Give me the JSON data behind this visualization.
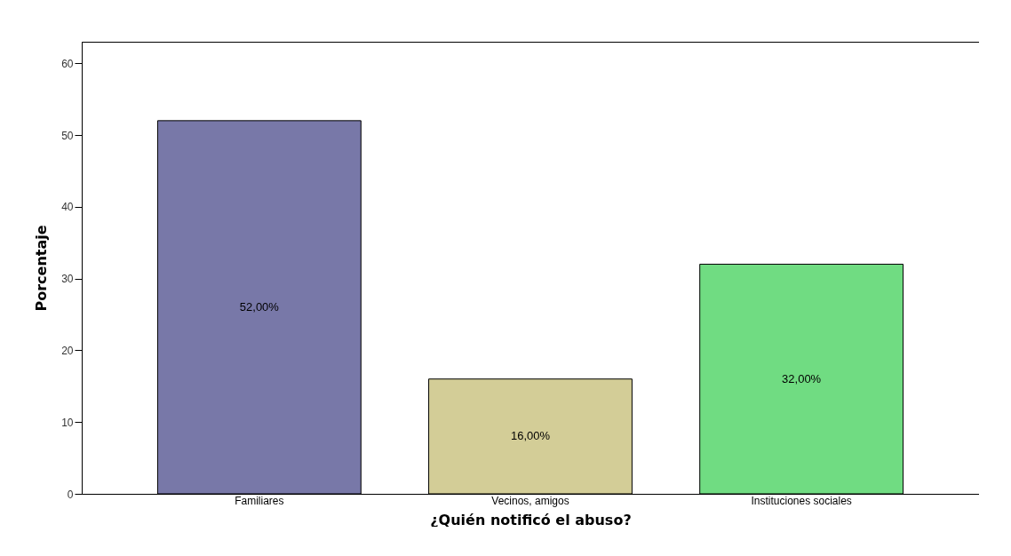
{
  "chart_data": {
    "type": "bar",
    "xlabel": "¿Quién notificó el abuso?",
    "ylabel": "Porcentaje",
    "categories": [
      "Familiares",
      "Vecinos, amigos",
      "Instituciones sociales"
    ],
    "values": [
      52,
      16,
      32
    ],
    "value_labels": [
      "52,00%",
      "16,00%",
      "32,00%"
    ],
    "colors": [
      "#7878a8",
      "#d3cd97",
      "#70dc82"
    ],
    "ylim": [
      0,
      63
    ],
    "yticks": [
      0,
      10,
      20,
      30,
      40,
      50,
      60
    ],
    "grid": false
  }
}
